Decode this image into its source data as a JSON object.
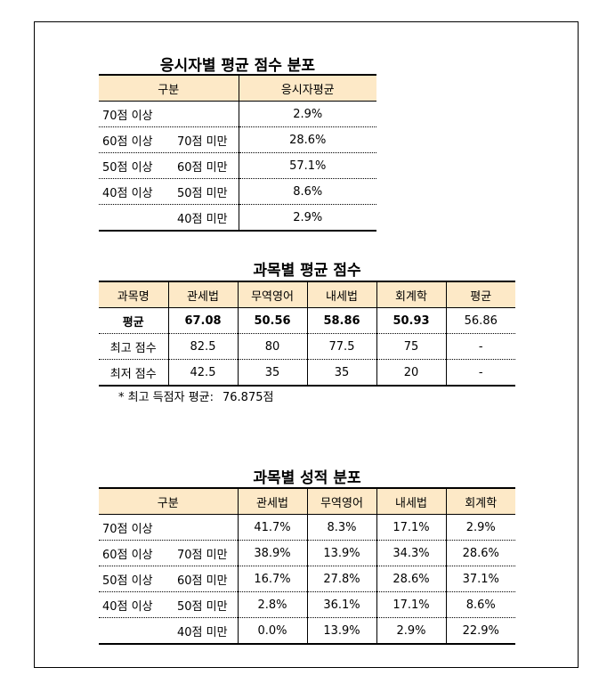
{
  "table1": {
    "title": "응시자별 평균 점수 분포",
    "headers": [
      "구분",
      "응시자평균"
    ],
    "rows": [
      {
        "a": "70점 이상",
        "b": "",
        "value": "2.9%"
      },
      {
        "a": "60점 이상",
        "b": "70점 미만",
        "value": "28.6%"
      },
      {
        "a": "50점 이상",
        "b": "60점 미만",
        "value": "57.1%"
      },
      {
        "a": "40점 이상",
        "b": "50점 미만",
        "value": "8.6%"
      },
      {
        "a": "",
        "b": "40점 미만",
        "value": "2.9%"
      }
    ]
  },
  "table2": {
    "title": "과목별 평균 점수",
    "headers": [
      "과목명",
      "관세법",
      "무역영어",
      "내세법",
      "회계학",
      "평균"
    ],
    "rows": [
      {
        "label": "평균",
        "values": [
          "67.08",
          "50.56",
          "58.86",
          "50.93",
          "56.86"
        ]
      },
      {
        "label": "최고 점수",
        "values": [
          "82.5",
          "80",
          "77.5",
          "75",
          "-"
        ]
      },
      {
        "label": "최저 점수",
        "values": [
          "42.5",
          "35",
          "35",
          "20",
          "-"
        ]
      }
    ],
    "note_label": "* 최고 득점자 평균:",
    "note_value": "76.875점"
  },
  "table3": {
    "title": "과목별 성적 분포",
    "headers": [
      "구분",
      "관세법",
      "무역영어",
      "내세법",
      "회계학"
    ],
    "rows": [
      {
        "a": "70점 이상",
        "b": "",
        "values": [
          "41.7%",
          "8.3%",
          "17.1%",
          "2.9%"
        ]
      },
      {
        "a": "60점 이상",
        "b": "70점 미만",
        "values": [
          "38.9%",
          "13.9%",
          "34.3%",
          "28.6%"
        ]
      },
      {
        "a": "50점 이상",
        "b": "60점 미만",
        "values": [
          "16.7%",
          "27.8%",
          "28.6%",
          "37.1%"
        ]
      },
      {
        "a": "40점 이상",
        "b": "50점 미만",
        "values": [
          "2.8%",
          "36.1%",
          "17.1%",
          "8.6%"
        ]
      },
      {
        "a": "",
        "b": "40점 미만",
        "values": [
          "0.0%",
          "13.9%",
          "2.9%",
          "22.9%"
        ]
      }
    ]
  }
}
